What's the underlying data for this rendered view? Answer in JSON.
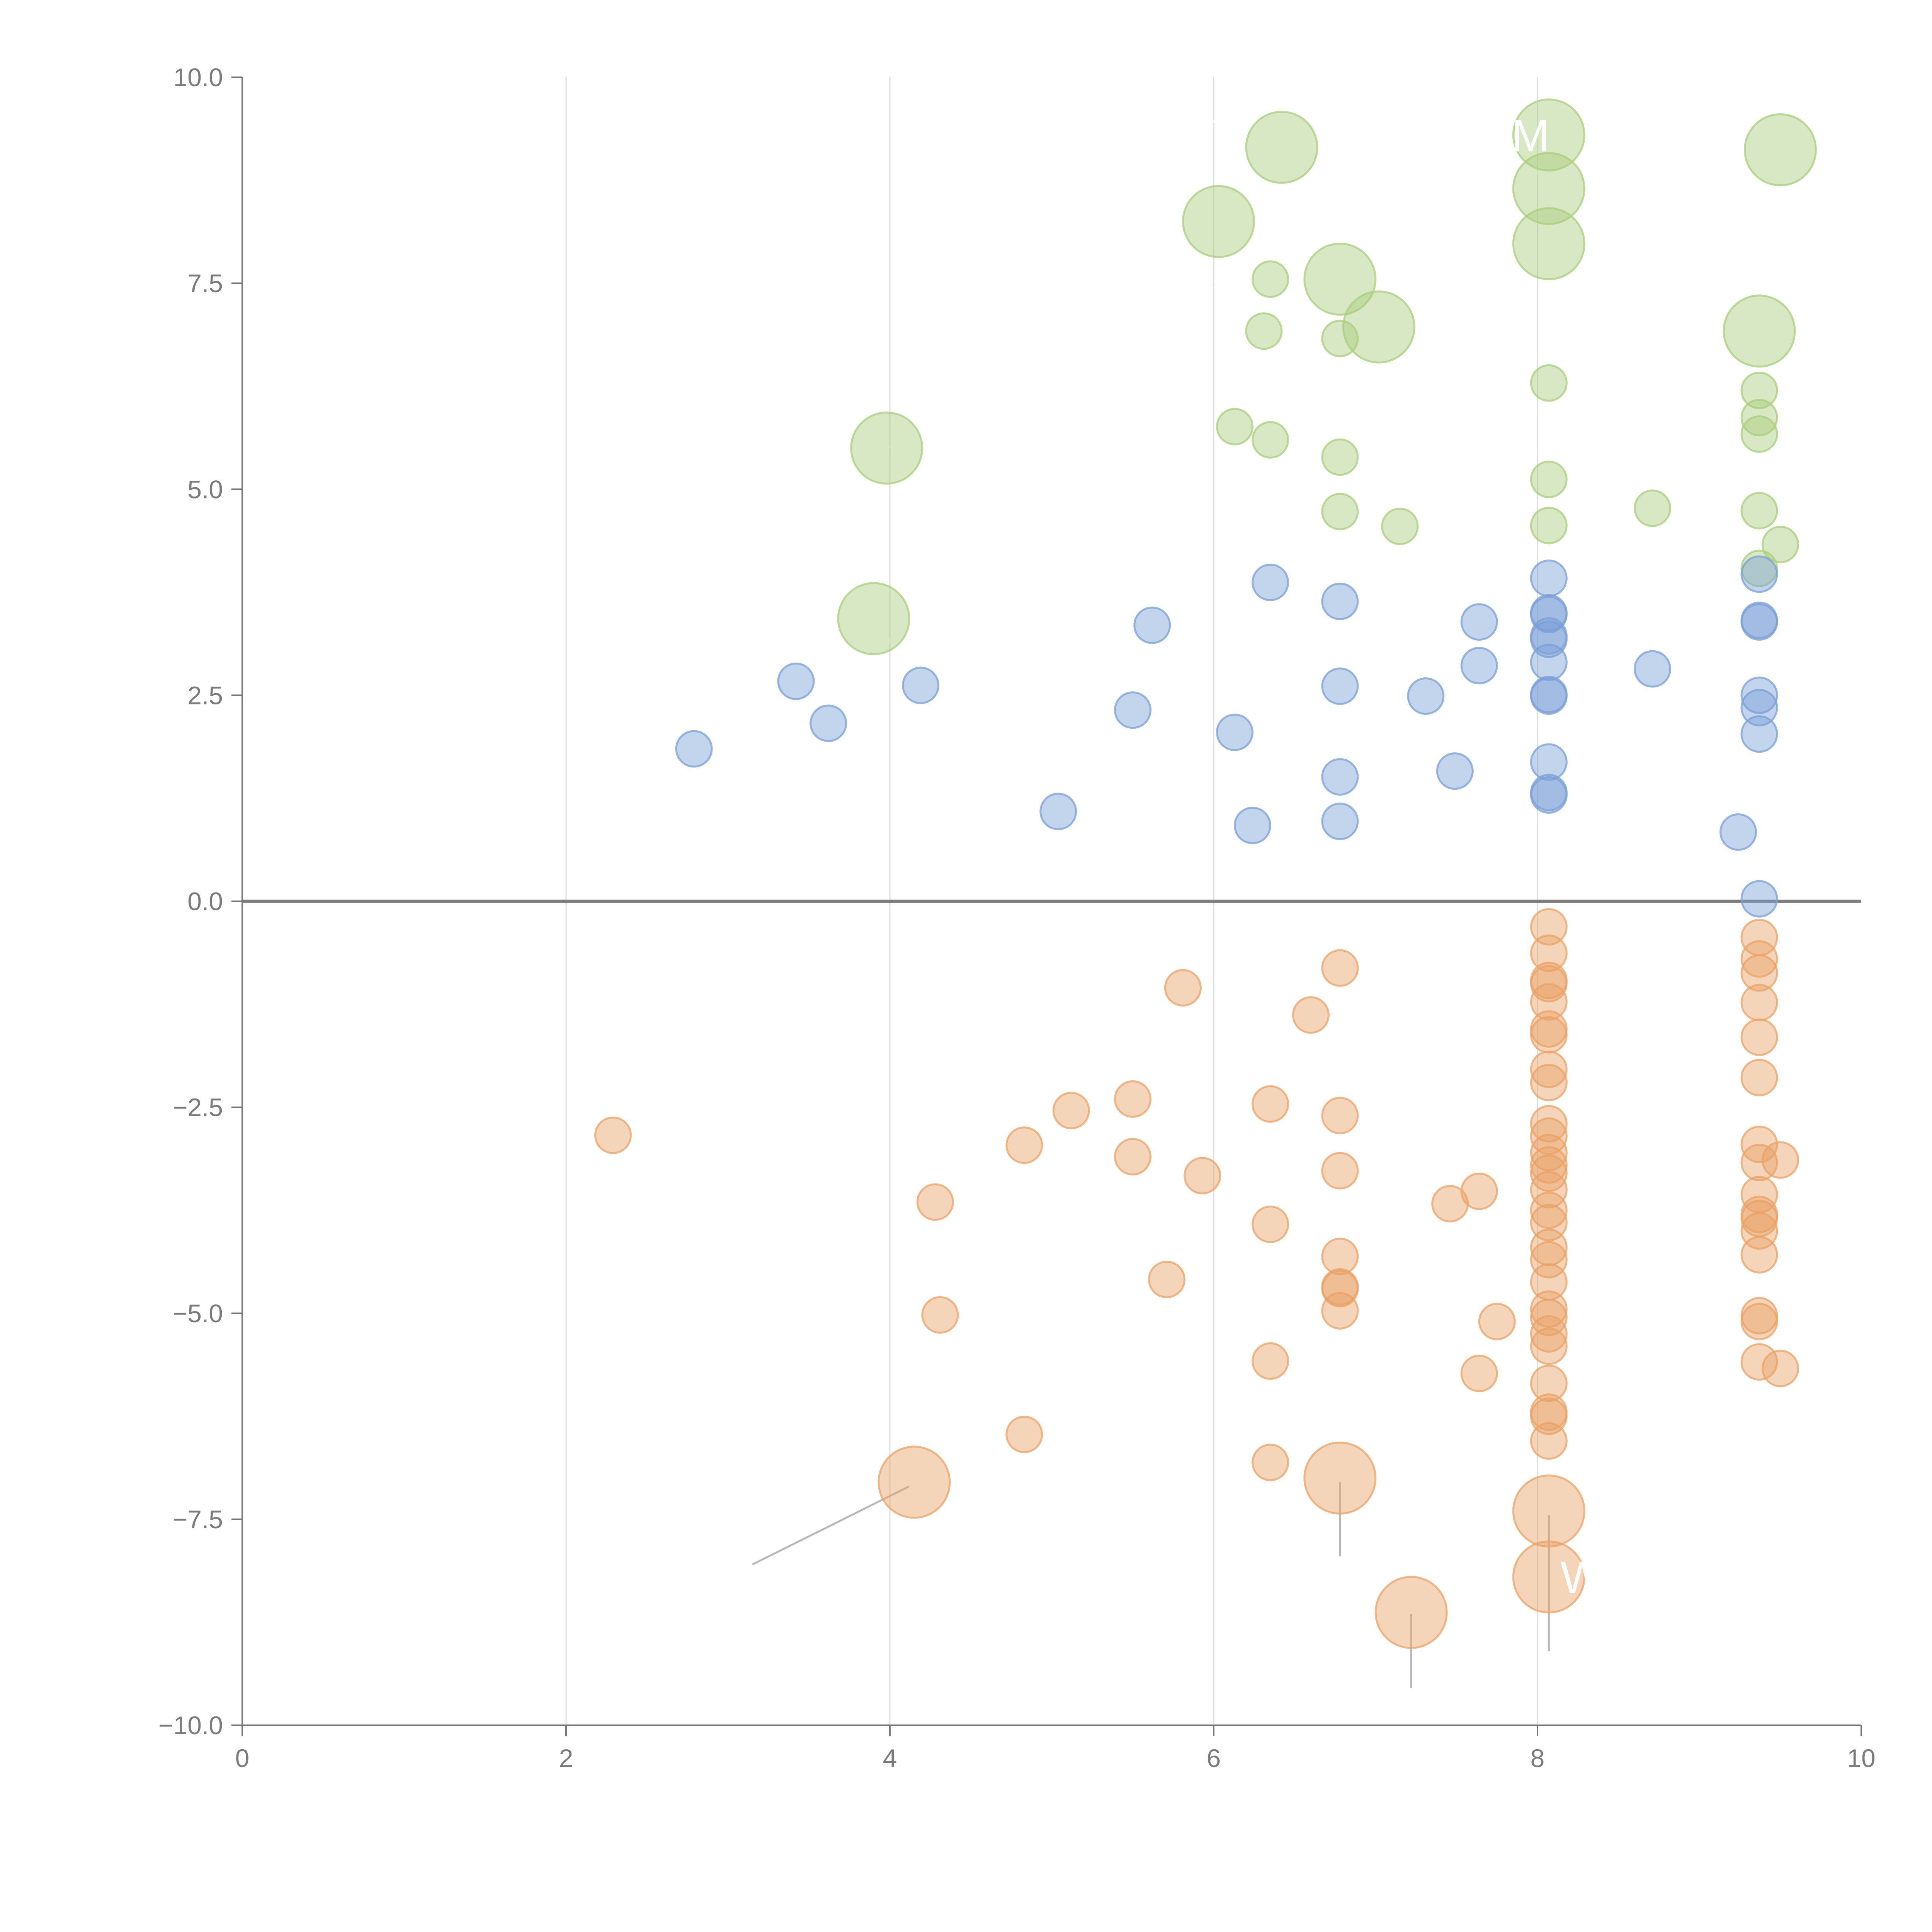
{
  "chart_data": {
    "type": "scatter",
    "title": "",
    "xlabel": "",
    "ylabel": "",
    "xlim": [
      0,
      10
    ],
    "ylim": [
      -10,
      10
    ],
    "x_ticks": [
      0,
      2,
      4,
      6,
      8,
      10
    ],
    "y_ticks": [
      -10,
      -7.5,
      -5,
      -2.5,
      0,
      2.5,
      5,
      7.5,
      10
    ],
    "x_tick_labels": [
      "0",
      "2",
      "4",
      "6",
      "8",
      "10"
    ],
    "y_tick_labels": [
      "−10.0",
      "−7.5",
      "−5.0",
      "−2.5",
      "0.0",
      "2.5",
      "5.0",
      "7.5",
      "10.0"
    ],
    "grid": "vertical",
    "colors": {
      "green": "#a9cd7c",
      "blue": "#7a9fd6",
      "orange": "#e9a266",
      "zero_line": "#7a7a7a"
    },
    "series": [
      {
        "name": "green",
        "color": "#a9cd7c",
        "points": [
          {
            "x": 6.42,
            "y": 9.15,
            "size": "large"
          },
          {
            "x": 6.03,
            "y": 8.25,
            "size": "large"
          },
          {
            "x": 8.07,
            "y": 9.3,
            "size": "large"
          },
          {
            "x": 8.07,
            "y": 8.65,
            "size": "large"
          },
          {
            "x": 8.07,
            "y": 7.98,
            "size": "large"
          },
          {
            "x": 9.5,
            "y": 9.12,
            "size": "large"
          },
          {
            "x": 6.78,
            "y": 7.55,
            "size": "large"
          },
          {
            "x": 7.02,
            "y": 6.97,
            "size": "large"
          },
          {
            "x": 9.37,
            "y": 6.92,
            "size": "large"
          },
          {
            "x": 3.98,
            "y": 5.5,
            "size": "large"
          },
          {
            "x": 3.9,
            "y": 3.43,
            "size": "large"
          },
          {
            "x": 6.35,
            "y": 7.55,
            "size": "small"
          },
          {
            "x": 6.31,
            "y": 6.92,
            "size": "small"
          },
          {
            "x": 6.78,
            "y": 6.83,
            "size": "small"
          },
          {
            "x": 8.07,
            "y": 6.29,
            "size": "small"
          },
          {
            "x": 9.37,
            "y": 6.2,
            "size": "small"
          },
          {
            "x": 9.37,
            "y": 5.87,
            "size": "small"
          },
          {
            "x": 9.37,
            "y": 5.67,
            "size": "small"
          },
          {
            "x": 6.13,
            "y": 5.76,
            "size": "small"
          },
          {
            "x": 6.35,
            "y": 5.6,
            "size": "small"
          },
          {
            "x": 6.78,
            "y": 5.39,
            "size": "small"
          },
          {
            "x": 8.07,
            "y": 5.12,
            "size": "small"
          },
          {
            "x": 8.71,
            "y": 4.77,
            "size": "small"
          },
          {
            "x": 9.37,
            "y": 4.74,
            "size": "small"
          },
          {
            "x": 6.78,
            "y": 4.73,
            "size": "small"
          },
          {
            "x": 7.15,
            "y": 4.55,
            "size": "small"
          },
          {
            "x": 8.07,
            "y": 4.56,
            "size": "small"
          },
          {
            "x": 9.5,
            "y": 4.33,
            "size": "small"
          },
          {
            "x": 9.37,
            "y": 4.04,
            "size": "small"
          }
        ]
      },
      {
        "name": "blue",
        "color": "#7a9fd6",
        "points": [
          {
            "x": 6.35,
            "y": 3.87
          },
          {
            "x": 6.78,
            "y": 3.64
          },
          {
            "x": 8.07,
            "y": 3.92
          },
          {
            "x": 9.37,
            "y": 3.97
          },
          {
            "x": 8.07,
            "y": 3.5
          },
          {
            "x": 8.07,
            "y": 3.48
          },
          {
            "x": 7.64,
            "y": 3.39
          },
          {
            "x": 9.37,
            "y": 3.41
          },
          {
            "x": 9.37,
            "y": 3.39
          },
          {
            "x": 5.62,
            "y": 3.35
          },
          {
            "x": 8.07,
            "y": 3.22
          },
          {
            "x": 8.07,
            "y": 3.18
          },
          {
            "x": 8.07,
            "y": 2.9
          },
          {
            "x": 7.64,
            "y": 2.86
          },
          {
            "x": 8.71,
            "y": 2.82
          },
          {
            "x": 3.42,
            "y": 2.67
          },
          {
            "x": 4.19,
            "y": 2.62
          },
          {
            "x": 6.78,
            "y": 2.61
          },
          {
            "x": 7.31,
            "y": 2.49
          },
          {
            "x": 8.07,
            "y": 2.51
          },
          {
            "x": 8.07,
            "y": 2.49
          },
          {
            "x": 9.37,
            "y": 2.5
          },
          {
            "x": 9.37,
            "y": 2.35
          },
          {
            "x": 5.5,
            "y": 2.32
          },
          {
            "x": 3.62,
            "y": 2.16
          },
          {
            "x": 6.13,
            "y": 2.05
          },
          {
            "x": 9.37,
            "y": 2.03
          },
          {
            "x": 2.79,
            "y": 1.85
          },
          {
            "x": 8.07,
            "y": 1.69
          },
          {
            "x": 7.49,
            "y": 1.58
          },
          {
            "x": 6.78,
            "y": 1.51
          },
          {
            "x": 8.07,
            "y": 1.32
          },
          {
            "x": 8.07,
            "y": 1.29
          },
          {
            "x": 5.04,
            "y": 1.09
          },
          {
            "x": 6.78,
            "y": 0.97
          },
          {
            "x": 6.24,
            "y": 0.92
          },
          {
            "x": 9.24,
            "y": 0.84
          },
          {
            "x": 9.37,
            "y": 0.03
          }
        ]
      },
      {
        "name": "orange",
        "color": "#e9a266",
        "points": [
          {
            "x": 8.07,
            "y": -0.31
          },
          {
            "x": 9.37,
            "y": -0.44
          },
          {
            "x": 8.07,
            "y": -0.63
          },
          {
            "x": 9.37,
            "y": -0.7
          },
          {
            "x": 6.78,
            "y": -0.81
          },
          {
            "x": 9.37,
            "y": -0.87
          },
          {
            "x": 8.07,
            "y": -0.96
          },
          {
            "x": 8.07,
            "y": -1.0
          },
          {
            "x": 5.81,
            "y": -1.05
          },
          {
            "x": 8.07,
            "y": -1.22
          },
          {
            "x": 9.37,
            "y": -1.23
          },
          {
            "x": 6.6,
            "y": -1.38
          },
          {
            "x": 8.07,
            "y": -1.55
          },
          {
            "x": 8.07,
            "y": -1.62
          },
          {
            "x": 9.37,
            "y": -1.65
          },
          {
            "x": 8.07,
            "y": -2.04
          },
          {
            "x": 8.07,
            "y": -2.2
          },
          {
            "x": 9.37,
            "y": -2.14
          },
          {
            "x": 5.5,
            "y": -2.4
          },
          {
            "x": 6.35,
            "y": -2.46
          },
          {
            "x": 5.12,
            "y": -2.54
          },
          {
            "x": 6.78,
            "y": -2.6
          },
          {
            "x": 2.29,
            "y": -2.84
          },
          {
            "x": 8.07,
            "y": -2.7
          },
          {
            "x": 8.07,
            "y": -2.85
          },
          {
            "x": 4.83,
            "y": -2.96
          },
          {
            "x": 9.37,
            "y": -2.95
          },
          {
            "x": 8.07,
            "y": -3.05
          },
          {
            "x": 5.5,
            "y": -3.1
          },
          {
            "x": 9.5,
            "y": -3.14
          },
          {
            "x": 9.37,
            "y": -3.17
          },
          {
            "x": 8.07,
            "y": -3.2
          },
          {
            "x": 8.07,
            "y": -3.3
          },
          {
            "x": 6.78,
            "y": -3.27
          },
          {
            "x": 5.93,
            "y": -3.33
          },
          {
            "x": 7.64,
            "y": -3.52
          },
          {
            "x": 8.07,
            "y": -3.5
          },
          {
            "x": 9.37,
            "y": -3.56
          },
          {
            "x": 4.28,
            "y": -3.65
          },
          {
            "x": 7.46,
            "y": -3.67
          },
          {
            "x": 8.07,
            "y": -3.75
          },
          {
            "x": 9.37,
            "y": -3.8
          },
          {
            "x": 9.37,
            "y": -3.85
          },
          {
            "x": 8.07,
            "y": -3.9
          },
          {
            "x": 6.35,
            "y": -3.92
          },
          {
            "x": 9.37,
            "y": -4.0
          },
          {
            "x": 8.07,
            "y": -4.2
          },
          {
            "x": 6.78,
            "y": -4.31
          },
          {
            "x": 9.37,
            "y": -4.29
          },
          {
            "x": 8.07,
            "y": -4.35
          },
          {
            "x": 5.71,
            "y": -4.59
          },
          {
            "x": 8.07,
            "y": -4.62
          },
          {
            "x": 6.78,
            "y": -4.68
          },
          {
            "x": 6.78,
            "y": -4.7
          },
          {
            "x": 8.07,
            "y": -4.95
          },
          {
            "x": 6.78,
            "y": -4.97
          },
          {
            "x": 8.07,
            "y": -5.05
          },
          {
            "x": 9.37,
            "y": -5.03
          },
          {
            "x": 4.31,
            "y": -5.02
          },
          {
            "x": 9.37,
            "y": -5.1
          },
          {
            "x": 7.75,
            "y": -5.1
          },
          {
            "x": 8.07,
            "y": -5.25
          },
          {
            "x": 8.07,
            "y": -5.4
          },
          {
            "x": 6.35,
            "y": -5.58
          },
          {
            "x": 9.37,
            "y": -5.59
          },
          {
            "x": 9.5,
            "y": -5.67
          },
          {
            "x": 7.64,
            "y": -5.73
          },
          {
            "x": 8.07,
            "y": -5.85
          },
          {
            "x": 8.07,
            "y": -6.2
          },
          {
            "x": 8.07,
            "y": -6.25
          },
          {
            "x": 4.83,
            "y": -6.47
          },
          {
            "x": 8.07,
            "y": -6.55
          },
          {
            "x": 6.35,
            "y": -6.81
          },
          {
            "x": 4.15,
            "y": -7.05,
            "size": "large"
          },
          {
            "x": 6.78,
            "y": -7.0,
            "size": "large"
          },
          {
            "x": 8.07,
            "y": -7.4,
            "size": "large"
          },
          {
            "x": 8.07,
            "y": -8.2,
            "size": "large"
          },
          {
            "x": 7.22,
            "y": -8.63,
            "size": "large"
          }
        ]
      }
    ],
    "annotations": [
      {
        "text": "DM",
        "x": 8.07,
        "y": 9.3
      },
      {
        "text": "W",
        "x": 8.07,
        "y": -8.2
      }
    ]
  }
}
